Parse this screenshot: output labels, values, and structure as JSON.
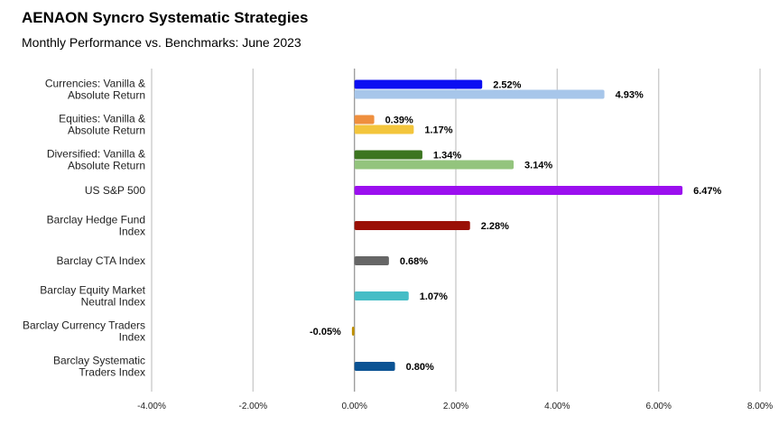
{
  "chart_data": {
    "type": "bar",
    "orientation": "horizontal",
    "title": "AENAON Syncro Systematic Strategies",
    "subtitle": "Monthly Performance vs. Benchmarks: June 2023",
    "xlim": [
      -4,
      8
    ],
    "x_ticks": [
      -4,
      -2,
      0,
      2,
      4,
      6,
      8
    ],
    "x_tick_labels": [
      "-4.00%",
      "-2.00%",
      "0.00%",
      "2.00%",
      "4.00%",
      "6.00%",
      "8.00%"
    ],
    "grid": "vertical",
    "legend": "none",
    "groups": [
      {
        "label": [
          "Currencies: Vanilla &",
          "Absolute Return"
        ],
        "bars": [
          {
            "value": 2.52,
            "label": "2.52%",
            "color": "#0b0ef2"
          },
          {
            "value": 4.93,
            "label": "4.93%",
            "color": "#a7c6ea"
          }
        ]
      },
      {
        "label": [
          "Equities: Vanilla &",
          "Absolute Return"
        ],
        "bars": [
          {
            "value": 0.39,
            "label": "0.39%",
            "color": "#ef8f3e"
          },
          {
            "value": 1.17,
            "label": "1.17%",
            "color": "#f3c53c"
          }
        ]
      },
      {
        "label": [
          "Diversified: Vanilla &",
          "Absolute Return"
        ],
        "bars": [
          {
            "value": 1.34,
            "label": "1.34%",
            "color": "#3c7520"
          },
          {
            "value": 3.14,
            "label": "3.14%",
            "color": "#93c47d"
          }
        ]
      },
      {
        "label": [
          "US S&P 500"
        ],
        "bars": [
          {
            "value": 6.47,
            "label": "6.47%",
            "color": "#9b0fef"
          }
        ]
      },
      {
        "label": [
          "Barclay Hedge Fund",
          "Index"
        ],
        "bars": [
          {
            "value": 2.28,
            "label": "2.28%",
            "color": "#9a1006"
          }
        ]
      },
      {
        "label": [
          "Barclay CTA Index"
        ],
        "bars": [
          {
            "value": 0.68,
            "label": "0.68%",
            "color": "#666666"
          }
        ]
      },
      {
        "label": [
          "Barclay Equity Market",
          "Neutral Index"
        ],
        "bars": [
          {
            "value": 1.07,
            "label": "1.07%",
            "color": "#46bdc6"
          }
        ]
      },
      {
        "label": [
          "Barclay Currency Traders",
          "Index"
        ],
        "bars": [
          {
            "value": -0.05,
            "label": "-0.05%",
            "color": "#bf9000"
          }
        ]
      },
      {
        "label": [
          "Barclay Systematic",
          "Traders Index"
        ],
        "bars": [
          {
            "value": 0.8,
            "label": "0.80%",
            "color": "#0b5394"
          }
        ]
      }
    ]
  }
}
